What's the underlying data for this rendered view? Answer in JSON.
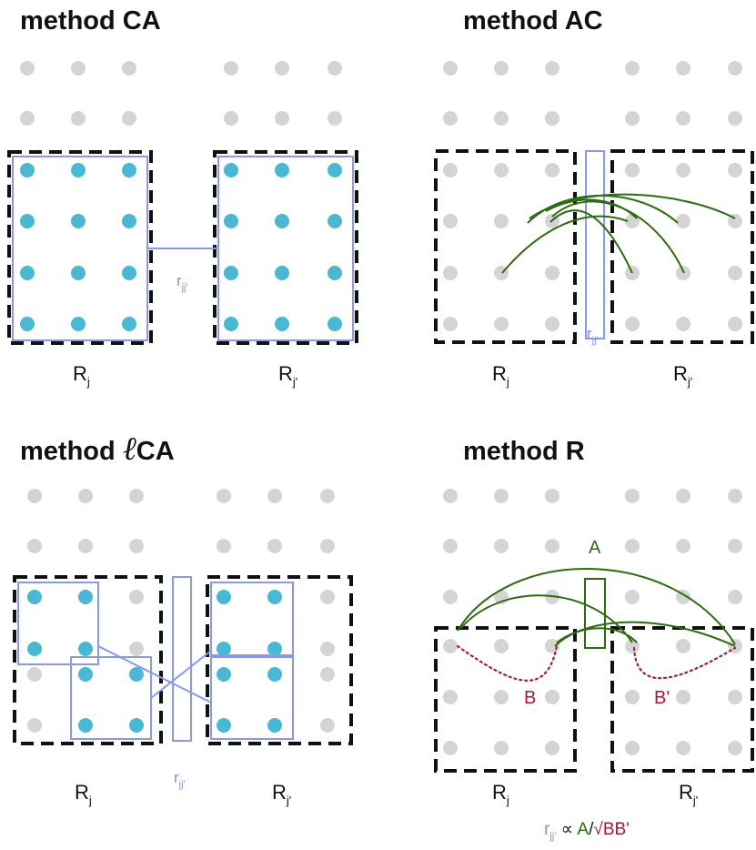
{
  "panels": {
    "ca": {
      "title": "method CA",
      "region_left": "R",
      "region_left_sub": "j",
      "region_right": "R",
      "region_right_sub": "j'",
      "link": "r",
      "link_sub": "jj'"
    },
    "ac": {
      "title": "method AC",
      "region_left": "R",
      "region_left_sub": "j",
      "region_right": "R",
      "region_right_sub": "j'",
      "link": "r",
      "link_sub": "jj'"
    },
    "lca": {
      "title_prefix": "method ",
      "title_script": "ℓ",
      "title_suffix": "CA",
      "region_left": "R",
      "region_left_sub": "j",
      "region_right": "R",
      "region_right_sub": "j'",
      "link": "r",
      "link_sub": "jj'"
    },
    "r": {
      "title": "method R",
      "region_left": "R",
      "region_left_sub": "j",
      "region_right": "R",
      "region_right_sub": "j'",
      "label_a": "A",
      "label_b": "B",
      "label_b2": "B'",
      "formula": {
        "r": "r",
        "r_sub": "jj'",
        "propto": " ∝ ",
        "a": "A",
        "slash": "/",
        "sqrt": "√",
        "bb": "BB'"
      }
    }
  },
  "colors": {
    "gray_dot": "#d4d4d4",
    "blue_dot": "#4ab8d2",
    "blue_line": "#8a98ea",
    "green": "#2e6b10",
    "red": "#a8183a"
  }
}
